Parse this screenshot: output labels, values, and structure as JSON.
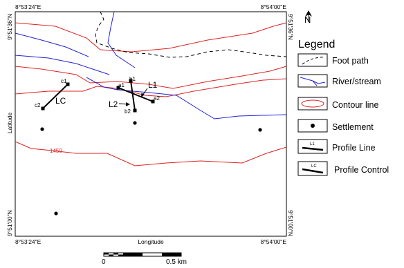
{
  "frame": {
    "top_left": "8°53'24\"E",
    "top_right": "8°54'00\"E",
    "bottom_left": "8°53'24\"E",
    "bottom_right": "8°54'00\"E",
    "left_top": "9°51'36\"N",
    "left_bottom": "9°51'00\"N",
    "right_top": "9°51'36\"N",
    "right_bottom": "9°51'00\"N",
    "x_axis_label": "Longitude",
    "y_axis_label": "Latitude"
  },
  "north_arrow": {
    "label": "N"
  },
  "map_labels": {
    "contour_value": "1450",
    "c1": "c1",
    "c2": "c2",
    "lc": "LC",
    "b1": "b1",
    "b2": "b2",
    "l2": "L2",
    "a1": "a1",
    "a2": "a2",
    "l1": "L1"
  },
  "colors": {
    "contour": "#e02020",
    "river": "#2020d8",
    "footpath": "#000000"
  },
  "legend": {
    "title": "Legend",
    "items": [
      {
        "label": "Foot path"
      },
      {
        "label": "River/stream"
      },
      {
        "label": "Contour line"
      },
      {
        "label": "Settlement"
      },
      {
        "label": "Profile Line",
        "symbol_text": "L1"
      },
      {
        "label": "Profile Control",
        "symbol_text": "LC"
      }
    ]
  },
  "scale_bar": {
    "start_label": "0",
    "end_label": "0.5 km"
  }
}
